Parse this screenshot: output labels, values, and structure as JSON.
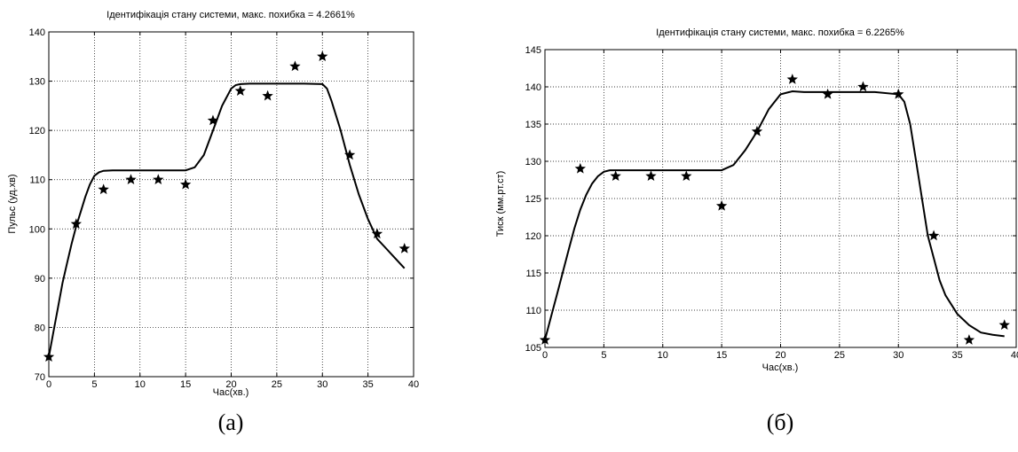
{
  "chart_data": [
    {
      "type": "line",
      "title": "Ідентифікація стану системи, макс. похибка = 4.2661%",
      "xlabel": "Час(хв.)",
      "ylabel": "Пульс (уд.хв)",
      "caption": "(а)",
      "xlim": [
        0,
        40
      ],
      "ylim": [
        70,
        140
      ],
      "xticks": [
        0,
        5,
        10,
        15,
        20,
        25,
        30,
        35,
        40
      ],
      "yticks": [
        70,
        80,
        90,
        100,
        110,
        120,
        130,
        140
      ],
      "grid": true,
      "series": [
        {
          "marker": "star",
          "x": [
            0,
            3,
            6,
            9,
            12,
            15,
            18,
            21,
            24,
            27,
            30,
            33,
            36,
            39
          ],
          "y": [
            74,
            101,
            108,
            110,
            110,
            109,
            122,
            128,
            127,
            133,
            135,
            115,
            99,
            96
          ]
        },
        {
          "marker": "none",
          "x": [
            0,
            0.5,
            1,
            1.5,
            2,
            2.5,
            3,
            3.5,
            4,
            4.5,
            5,
            5.5,
            6,
            7,
            9,
            12,
            15,
            16,
            17,
            18,
            19,
            20,
            20.5,
            21,
            22,
            25,
            28,
            30,
            30.5,
            31,
            32,
            33,
            34,
            35,
            36,
            37,
            38,
            39
          ],
          "y": [
            74,
            79,
            84,
            89,
            93,
            97,
            100.5,
            103.5,
            106.5,
            109,
            110.8,
            111.5,
            111.8,
            111.9,
            111.9,
            111.9,
            111.9,
            112.5,
            115,
            120,
            125,
            128.5,
            129.2,
            129.4,
            129.5,
            129.5,
            129.5,
            129.4,
            128.5,
            126,
            120,
            113,
            107,
            102,
            98,
            96,
            94,
            92
          ]
        }
      ]
    },
    {
      "type": "line",
      "title": "Ідентифікація стану системи, макс. похибка = 6.2265%",
      "xlabel": "Час(хв.)",
      "ylabel": "Тиск (мм.рт.ст)",
      "caption": "(б)",
      "xlim": [
        0,
        40
      ],
      "ylim": [
        105,
        145
      ],
      "xticks": [
        0,
        5,
        10,
        15,
        20,
        25,
        30,
        35,
        40
      ],
      "yticks": [
        105,
        110,
        115,
        120,
        125,
        130,
        135,
        140,
        145
      ],
      "grid": true,
      "series": [
        {
          "marker": "star",
          "x": [
            0,
            3,
            6,
            9,
            12,
            15,
            18,
            21,
            24,
            27,
            30,
            33,
            36,
            39
          ],
          "y": [
            106,
            129,
            128,
            128,
            128,
            124,
            134,
            141,
            139,
            140,
            139,
            120,
            106,
            108
          ]
        },
        {
          "marker": "none",
          "x": [
            0,
            0.5,
            1,
            1.5,
            2,
            2.5,
            3,
            3.5,
            4,
            4.5,
            5,
            5.5,
            6,
            8,
            12,
            15,
            16,
            17,
            18,
            19,
            20,
            21,
            22,
            25,
            28,
            30,
            30.5,
            31,
            31.5,
            32,
            32.5,
            33,
            33.5,
            34,
            35,
            36,
            37,
            38,
            39
          ],
          "y": [
            106,
            109,
            112,
            115,
            118,
            121,
            123.5,
            125.5,
            127,
            128,
            128.6,
            128.8,
            128.8,
            128.8,
            128.8,
            128.8,
            129.5,
            131.5,
            134,
            137,
            139,
            139.4,
            139.3,
            139.3,
            139.3,
            139,
            138,
            135,
            130,
            125,
            120,
            117,
            114,
            112,
            109.5,
            108,
            107,
            106.7,
            106.5
          ]
        }
      ]
    }
  ]
}
